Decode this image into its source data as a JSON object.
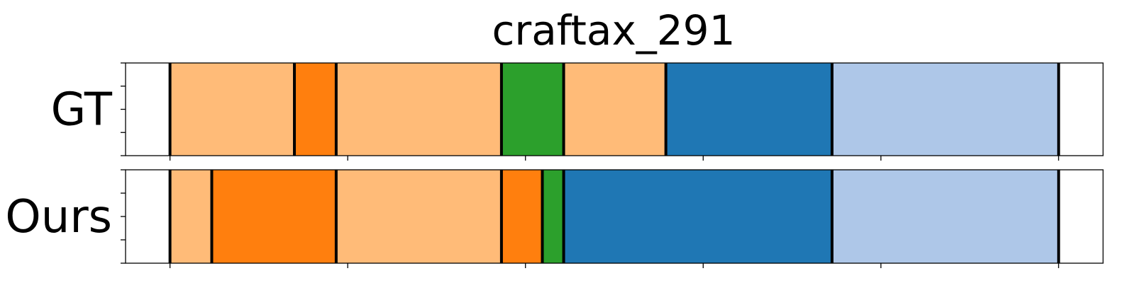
{
  "chart_data": {
    "type": "bar",
    "title": "craftax_291",
    "xlabel": "",
    "ylabel": "",
    "xlim": [
      0,
      1100
    ],
    "xticks": [
      50,
      250,
      450,
      650,
      850,
      1050
    ],
    "grid": false,
    "legend": "none",
    "rows": [
      {
        "label": "GT",
        "segments": [
          {
            "start": 50,
            "end": 190,
            "color": "#ffbb78"
          },
          {
            "start": 190,
            "end": 237,
            "color": "#ff7f0e"
          },
          {
            "start": 237,
            "end": 423,
            "color": "#ffbb78"
          },
          {
            "start": 423,
            "end": 493,
            "color": "#2ca02c"
          },
          {
            "start": 493,
            "end": 608,
            "color": "#ffbb78"
          },
          {
            "start": 608,
            "end": 795,
            "color": "#1f77b4"
          },
          {
            "start": 795,
            "end": 1050,
            "color": "#aec7e8"
          }
        ]
      },
      {
        "label": "Ours",
        "segments": [
          {
            "start": 50,
            "end": 97,
            "color": "#ffbb78"
          },
          {
            "start": 97,
            "end": 237,
            "color": "#ff7f0e"
          },
          {
            "start": 237,
            "end": 423,
            "color": "#ffbb78"
          },
          {
            "start": 423,
            "end": 469,
            "color": "#ff7f0e"
          },
          {
            "start": 469,
            "end": 493,
            "color": "#2ca02c"
          },
          {
            "start": 493,
            "end": 795,
            "color": "#1f77b4"
          },
          {
            "start": 795,
            "end": 1050,
            "color": "#aec7e8"
          }
        ]
      }
    ]
  }
}
